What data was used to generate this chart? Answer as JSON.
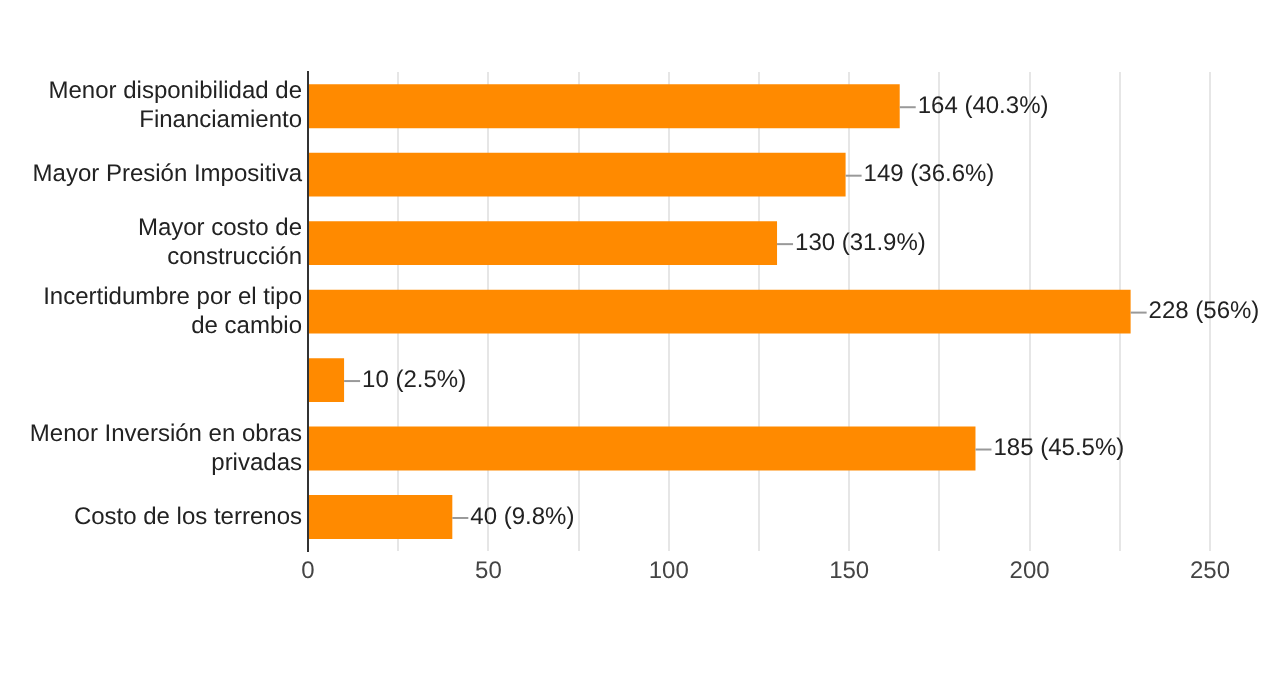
{
  "chart_data": {
    "type": "bar",
    "orientation": "horizontal",
    "categories": [
      "Menor disponibilidad de Financiamiento",
      "Mayor Presión Impositiva",
      "Mayor costo de construcción",
      "Incertidumbre por el tipo de cambio",
      null,
      "Menor Inversión en obras privadas",
      "Costo de los terrenos"
    ],
    "values": [
      164,
      149,
      130,
      228,
      10,
      185,
      40
    ],
    "value_labels": [
      "164 (40.3%)",
      "149 (36.6%)",
      "130 (31.9%)",
      "228 (56%)",
      "10 (2.5%)",
      "185 (45.5%)",
      "40 (9.8%)"
    ],
    "color": "#ff8a00",
    "xlim": [
      0,
      250
    ],
    "xticks": [
      0,
      {
        "value": 25,
        "label": null
      },
      50,
      {
        "value": 75,
        "label": null
      },
      100,
      {
        "value": 125,
        "label": null
      },
      150,
      {
        "value": 175,
        "label": null
      },
      200,
      {
        "value": 225,
        "label": null
      },
      250
    ],
    "grid": "x",
    "legend": false
  }
}
